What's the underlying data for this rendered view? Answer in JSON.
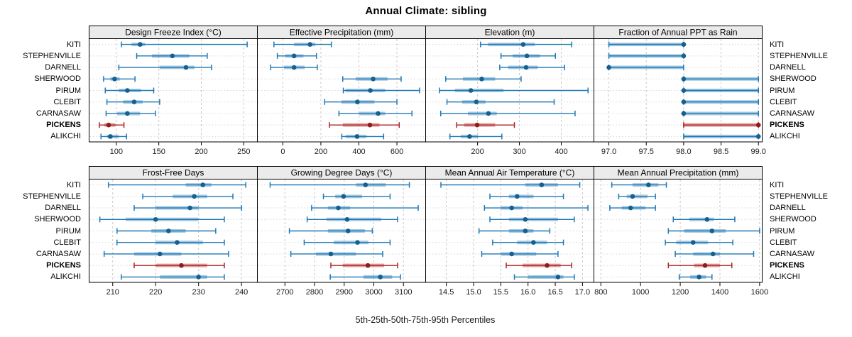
{
  "chart_data": {
    "type": "scatter",
    "subtype": "percentile-dot-interval (trellis, 2x4 panels)",
    "title": "Annual Climate: sibling",
    "xlabel": "5th-25th-50th-75th-95th Percentiles",
    "percentiles": [
      5,
      25,
      50,
      75,
      95
    ],
    "stations": [
      "KITI",
      "STEPHENVILLE",
      "DARNELL",
      "SHERWOOD",
      "PIRUM",
      "CLEBIT",
      "CARNASAW",
      "PICKENS",
      "ALIKCHI"
    ],
    "highlight_station": "PICKENS",
    "layout": {
      "rows": 2,
      "cols": 4,
      "grid": "dashed vertical at ticks, dotted horizontal per station row",
      "legend": "none"
    },
    "colors": {
      "series": "#1f78b4",
      "series_band": "rgba(31,120,180,0.40)",
      "series_dot": "#15608f",
      "highlight": "#b22222",
      "highlight_band": "rgba(178,34,34,0.42)",
      "highlight_dot": "#8f1d1d",
      "strip_bg": "#ebebeb",
      "border": "#000000",
      "grid_v": "#c9c9c9",
      "grid_h": "#d6d6d6"
    },
    "panels": [
      {
        "title": "Design Freeze Index (°C)",
        "row": 0,
        "col": 0,
        "xlim": [
          68,
          266
        ],
        "ticks": [
          100,
          150,
          200,
          250
        ],
        "tick_labels": [
          "100",
          "150",
          "200",
          "250"
        ],
        "values": [
          [
            106,
            118,
            128,
            134,
            254
          ],
          [
            124,
            142,
            166,
            186,
            207
          ],
          [
            103,
            151,
            182,
            192,
            212
          ],
          [
            85,
            93,
            98,
            104,
            122
          ],
          [
            87,
            103,
            113,
            129,
            144
          ],
          [
            89,
            108,
            121,
            131,
            151
          ],
          [
            88,
            101,
            113,
            128,
            146
          ],
          [
            80,
            86,
            91,
            99,
            109
          ],
          [
            82,
            89,
            93,
            103,
            112
          ]
        ]
      },
      {
        "title": "Effective Precipitation (mm)",
        "row": 0,
        "col": 1,
        "xlim": [
          -134,
          751
        ],
        "ticks": [
          0,
          200,
          400,
          600
        ],
        "tick_labels": [
          "0",
          "200",
          "400",
          "600"
        ],
        "values": [
          [
            -47,
            59,
            143,
            171,
            255
          ],
          [
            -29,
            12,
            59,
            108,
            177
          ],
          [
            -64,
            6,
            59,
            115,
            181
          ],
          [
            315,
            383,
            475,
            551,
            622
          ],
          [
            318,
            330,
            460,
            538,
            719
          ],
          [
            220,
            308,
            392,
            482,
            600
          ],
          [
            295,
            401,
            501,
            538,
            679
          ],
          [
            245,
            315,
            458,
            508,
            612
          ],
          [
            310,
            330,
            390,
            440,
            530
          ]
        ]
      },
      {
        "title": "Elevation (m)",
        "row": 0,
        "col": 2,
        "xlim": [
          76,
          478
        ],
        "ticks": [
          200,
          300,
          400
        ],
        "tick_labels": [
          "200",
          "300",
          "400"
        ],
        "values": [
          [
            207,
            225,
            309,
            337,
            425
          ],
          [
            256,
            284,
            318,
            349,
            386
          ],
          [
            253,
            273,
            316,
            344,
            408
          ],
          [
            124,
            165,
            210,
            242,
            304
          ],
          [
            109,
            146,
            184,
            262,
            464
          ],
          [
            127,
            163,
            197,
            219,
            383
          ],
          [
            112,
            177,
            226,
            246,
            433
          ],
          [
            150,
            168,
            199,
            242,
            288
          ],
          [
            134,
            160,
            181,
            201,
            258
          ]
        ]
      },
      {
        "title": "Fraction of Annual PPT as Rain",
        "row": 0,
        "col": 3,
        "xlim": [
          96.8,
          99.05
        ],
        "ticks": [
          97.0,
          97.5,
          98.0,
          98.5,
          99.0
        ],
        "tick_labels": [
          "97.0",
          "97.5",
          "98.0",
          "98.5",
          "99.0"
        ],
        "values": [
          [
            97,
            97,
            98,
            98,
            98
          ],
          [
            97,
            97,
            98,
            98,
            98
          ],
          [
            97,
            97,
            97,
            98,
            98
          ],
          [
            98,
            98,
            98,
            99,
            99
          ],
          [
            98,
            98,
            98,
            99,
            99
          ],
          [
            98,
            98,
            98,
            99,
            99
          ],
          [
            98,
            98,
            98,
            99,
            99
          ],
          [
            98,
            98,
            99,
            99,
            99
          ],
          [
            98,
            98,
            99,
            99,
            99
          ]
        ]
      },
      {
        "title": "Frost-Free Days",
        "row": 1,
        "col": 0,
        "xlim": [
          204.5,
          243.7
        ],
        "ticks": [
          210,
          220,
          230,
          240
        ],
        "tick_labels": [
          "210",
          "220",
          "230",
          "240"
        ],
        "values": [
          [
            209,
            227,
            231,
            233,
            241
          ],
          [
            217,
            224,
            229,
            232,
            238
          ],
          [
            215,
            220,
            228,
            230,
            240
          ],
          [
            207,
            213,
            220,
            230,
            236
          ],
          [
            211,
            219,
            223,
            227,
            234
          ],
          [
            211,
            220,
            225,
            231,
            236
          ],
          [
            208,
            215,
            221,
            226,
            237
          ],
          [
            215,
            220,
            226,
            232,
            236
          ],
          [
            212,
            221,
            230,
            232,
            236
          ]
        ]
      },
      {
        "title": "Growing Degree Days (°C)",
        "row": 1,
        "col": 1,
        "xlim": [
          2607,
          3175
        ],
        "ticks": [
          2700,
          2800,
          2900,
          3000,
          3100
        ],
        "tick_labels": [
          "2700",
          "2800",
          "2900",
          "3000",
          "3100"
        ],
        "values": [
          [
            2650,
            2940,
            2972,
            3040,
            3120
          ],
          [
            2830,
            2870,
            2898,
            2960,
            3055
          ],
          [
            2790,
            2845,
            2880,
            2920,
            3150
          ],
          [
            2775,
            2840,
            2910,
            3025,
            3080
          ],
          [
            2715,
            2845,
            2913,
            2970,
            2995
          ],
          [
            2765,
            2865,
            2945,
            2982,
            3055
          ],
          [
            2720,
            2805,
            2855,
            2940,
            3030
          ],
          [
            2855,
            2895,
            2980,
            3035,
            3080
          ],
          [
            2853,
            2965,
            3022,
            3062,
            3090
          ]
        ]
      },
      {
        "title": "Mean Annual Air Temperature (°C)",
        "row": 1,
        "col": 2,
        "xlim": [
          14.12,
          17.21
        ],
        "ticks": [
          14.5,
          15.0,
          15.5,
          16.0,
          16.5,
          17.0
        ],
        "tick_labels": [
          "14.5",
          "15.0",
          "15.5",
          "16.0",
          "16.5",
          "17.0"
        ],
        "values": [
          [
            14.4,
            15.95,
            16.25,
            16.55,
            16.95
          ],
          [
            15.3,
            15.65,
            15.8,
            16.1,
            16.65
          ],
          [
            15.2,
            15.5,
            15.7,
            15.9,
            17.1
          ],
          [
            15.3,
            15.65,
            15.95,
            16.55,
            16.85
          ],
          [
            15.1,
            15.65,
            15.95,
            16.1,
            16.4
          ],
          [
            15.35,
            15.8,
            16.1,
            16.35,
            16.65
          ],
          [
            15.15,
            15.5,
            15.7,
            16.15,
            16.55
          ],
          [
            15.6,
            15.9,
            16.35,
            16.6,
            16.8
          ],
          [
            15.75,
            16.0,
            16.55,
            16.65,
            16.85
          ]
        ]
      },
      {
        "title": "Mean Annual Precipitation (mm)",
        "row": 1,
        "col": 3,
        "xlim": [
          765,
          1613
        ],
        "ticks": [
          800,
          1000,
          1200,
          1400,
          1600
        ],
        "tick_labels": [
          "800",
          "1000",
          "1200",
          "1400",
          "1600"
        ],
        "values": [
          [
            855,
            960,
            1040,
            1090,
            1130
          ],
          [
            890,
            930,
            960,
            1035,
            1075
          ],
          [
            845,
            905,
            950,
            1025,
            1075
          ],
          [
            1165,
            1245,
            1335,
            1370,
            1475
          ],
          [
            1140,
            1220,
            1360,
            1430,
            1600
          ],
          [
            1125,
            1180,
            1265,
            1340,
            1465
          ],
          [
            1175,
            1265,
            1365,
            1400,
            1570
          ],
          [
            1140,
            1270,
            1325,
            1400,
            1460
          ],
          [
            1195,
            1250,
            1295,
            1330,
            1360
          ]
        ]
      }
    ]
  }
}
